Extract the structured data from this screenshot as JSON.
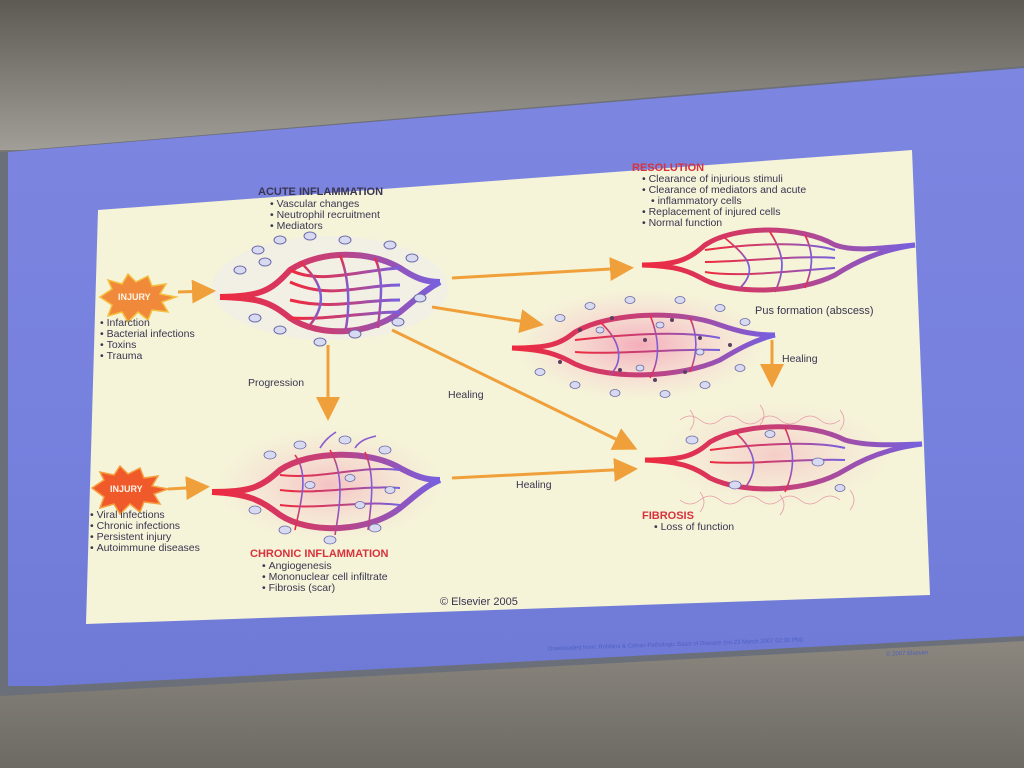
{
  "acute": {
    "title": "ACUTE INFLAMMATION",
    "items": [
      "Vascular changes",
      "Neutrophil recruitment",
      "Mediators"
    ]
  },
  "resolution": {
    "title": "RESOLUTION",
    "items": [
      "Clearance of injurious stimuli",
      "Clearance of mediators and acute",
      "inflammatory cells",
      "Replacement of injured cells",
      "Normal function"
    ]
  },
  "injury_acute": {
    "label": "INJURY",
    "causes": [
      "Infarction",
      "Bacterial infections",
      "Toxins",
      "Trauma"
    ]
  },
  "injury_chronic": {
    "label": "INJURY",
    "causes": [
      "Viral infections",
      "Chronic infections",
      "Persistent injury",
      "Autoimmune diseases"
    ]
  },
  "pus": "Pus formation (abscess)",
  "arrows": {
    "progression": "Progression",
    "healing_center": "Healing",
    "healing_right": "Healing",
    "healing_bottom": "Healing"
  },
  "chronic": {
    "title": "CHRONIC INFLAMMATION",
    "items": [
      "Angiogenesis",
      "Mononuclear cell infiltrate",
      "Fibrosis (scar)"
    ]
  },
  "fibrosis": {
    "title": "FIBROSIS",
    "items": [
      "Loss of function"
    ]
  },
  "copyright": "© Elsevier 2005",
  "footer": {
    "credit": "Downloaded from: Robbins & Cotran Pathologic Basis of Disease (on 23 March 2007 02:30 PM)",
    "copy": "© 2007 Elsevier"
  },
  "colors": {
    "arrow": "#f0a03a",
    "artery": "#e8324a",
    "vein": "#7a5ad8",
    "heading_red": "#d8323c"
  }
}
